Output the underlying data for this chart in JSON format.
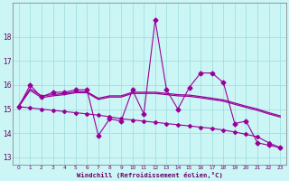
{
  "xlabel": "Windchill (Refroidissement éolien,°C)",
  "x": [
    0,
    1,
    2,
    3,
    4,
    5,
    6,
    7,
    8,
    9,
    10,
    11,
    12,
    13,
    14,
    15,
    16,
    17,
    18,
    19,
    20,
    21,
    22,
    23
  ],
  "line_jagged": [
    15.1,
    16.0,
    15.5,
    15.7,
    15.7,
    15.8,
    15.8,
    13.9,
    14.6,
    14.5,
    15.8,
    14.8,
    18.7,
    15.8,
    15.0,
    15.9,
    16.5,
    16.5,
    16.1,
    14.4,
    14.5,
    13.6,
    13.5,
    13.4
  ],
  "line_smooth": [
    15.15,
    15.85,
    15.55,
    15.6,
    15.65,
    15.72,
    15.72,
    15.45,
    15.55,
    15.55,
    15.7,
    15.7,
    15.7,
    15.65,
    15.6,
    15.58,
    15.52,
    15.45,
    15.38,
    15.25,
    15.12,
    15.0,
    14.85,
    14.72
  ],
  "line_smooth2": [
    15.1,
    15.78,
    15.48,
    15.55,
    15.6,
    15.68,
    15.68,
    15.4,
    15.5,
    15.5,
    15.65,
    15.65,
    15.65,
    15.6,
    15.55,
    15.53,
    15.47,
    15.4,
    15.33,
    15.2,
    15.07,
    14.95,
    14.8,
    14.67
  ],
  "line_decline": [
    15.1,
    15.05,
    15.0,
    14.95,
    14.9,
    14.85,
    14.8,
    14.75,
    14.68,
    14.6,
    14.55,
    14.5,
    14.45,
    14.4,
    14.35,
    14.3,
    14.25,
    14.2,
    14.13,
    14.05,
    13.95,
    13.85,
    13.6,
    13.4
  ],
  "color": "#990099",
  "bg_color": "#ccf5f5",
  "grid_color": "#99dddd",
  "yticks": [
    13,
    14,
    15,
    16,
    17,
    18
  ],
  "ylim": [
    12.7,
    19.4
  ],
  "xlim": [
    -0.5,
    23.5
  ]
}
